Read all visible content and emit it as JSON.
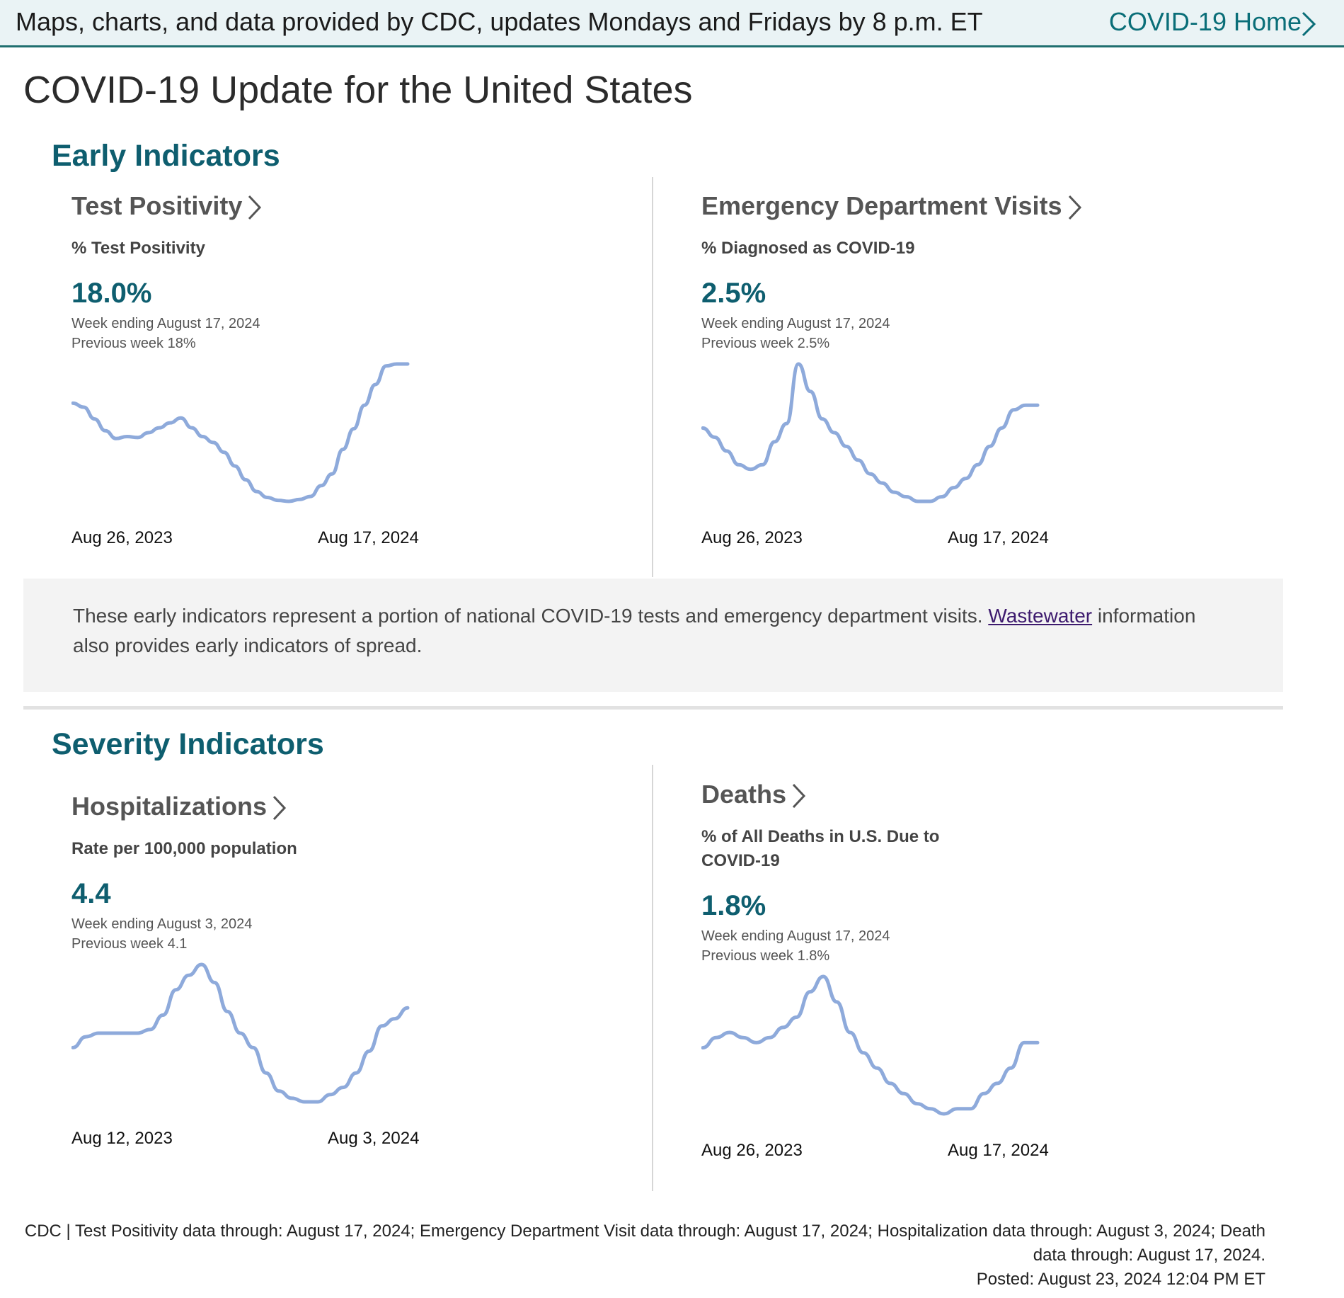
{
  "topbar": {
    "note": "Maps, charts, and data provided by CDC, updates Mondays and Fridays by 8 p.m. ET",
    "home_link": "COVID-19 Home"
  },
  "page_title": "COVID-19 Update for the United States",
  "early": {
    "title": "Early Indicators",
    "callout_text": "These early indicators represent a portion of national COVID-19 tests and emergency department visits.",
    "callout_link": "Wastewater",
    "callout_text2": "information also provides early indicators of spread."
  },
  "severity": {
    "title": "Severity Indicators"
  },
  "panels": {
    "test_positivity": {
      "title": "Test Positivity",
      "subtitle": "% Test Positivity",
      "value": "18.0%",
      "week": "Week ending August 17, 2024",
      "previous": "Previous week 18%",
      "x_start": "Aug 26, 2023",
      "x_end": "Aug 17, 2024"
    },
    "ed_visits": {
      "title": "Emergency Department Visits",
      "subtitle": "% Diagnosed as COVID-19",
      "value": "2.5%",
      "week": "Week ending August 17, 2024",
      "previous": "Previous week 2.5%",
      "x_start": "Aug 26, 2023",
      "x_end": "Aug 17, 2024"
    },
    "hospitalizations": {
      "title": "Hospitalizations",
      "subtitle": "Rate per 100,000 population",
      "value": "4.4",
      "week": "Week ending August 3, 2024",
      "previous": "Previous week 4.1",
      "x_start": "Aug 12, 2023",
      "x_end": "Aug 3, 2024"
    },
    "deaths": {
      "title": "Deaths",
      "subtitle": "% of All Deaths in U.S. Due to COVID-19",
      "value": "1.8%",
      "week": "Week ending August 17, 2024",
      "previous": "Previous week 1.8%",
      "x_start": "Aug 26, 2023",
      "x_end": "Aug 17, 2024"
    }
  },
  "footer": {
    "line1": "CDC | Test Positivity data through: August 17, 2024; Emergency Department Visit data through: August 17, 2024; Hospitalization data through: August 3, 2024; Death data through: August 17, 2024.",
    "posted": "Posted: August 23, 2024 12:04 PM ET"
  },
  "colors": {
    "accent": "#0e5e6f",
    "line": "#8eaadb",
    "link": "#0a6e78"
  },
  "chart_data": [
    {
      "type": "line",
      "title": "Test Positivity",
      "x_start": "Aug 26, 2023",
      "x_end": "Aug 17, 2024",
      "values": [
        14.0,
        13.6,
        12.4,
        11.2,
        10.4,
        10.6,
        10.5,
        11.0,
        11.5,
        12.0,
        12.5,
        11.5,
        10.6,
        10.0,
        9.0,
        7.6,
        6.2,
        5.0,
        4.4,
        4.1,
        4.0,
        4.2,
        4.5,
        5.6,
        6.8,
        9.3,
        11.4,
        13.8,
        15.9,
        17.8,
        18.0,
        18.0
      ]
    },
    {
      "type": "line",
      "title": "Emergency Department Visits",
      "x_start": "Aug 26, 2023",
      "x_end": "Aug 17, 2024",
      "values": [
        2.0,
        1.8,
        1.5,
        1.2,
        1.1,
        1.2,
        1.7,
        2.1,
        3.4,
        2.8,
        2.2,
        1.9,
        1.6,
        1.3,
        1.0,
        0.8,
        0.6,
        0.5,
        0.4,
        0.4,
        0.5,
        0.7,
        0.9,
        1.2,
        1.6,
        2.0,
        2.4,
        2.5,
        2.5
      ]
    },
    {
      "type": "line",
      "title": "Hospitalizations",
      "x_start": "Aug 12, 2023",
      "x_end": "Aug 3, 2024",
      "values": [
        3.3,
        3.6,
        3.7,
        3.7,
        3.7,
        3.7,
        3.8,
        4.2,
        4.9,
        5.3,
        5.6,
        5.1,
        4.3,
        3.7,
        3.3,
        2.6,
        2.1,
        1.9,
        1.8,
        1.8,
        2.0,
        2.2,
        2.6,
        3.2,
        3.9,
        4.1,
        4.4
      ]
    },
    {
      "type": "line",
      "title": "Deaths",
      "x_start": "Aug 26, 2023",
      "x_end": "Aug 17, 2024",
      "values": [
        1.7,
        1.9,
        2.0,
        1.9,
        1.8,
        1.9,
        2.1,
        2.3,
        2.8,
        3.1,
        2.6,
        2.0,
        1.6,
        1.3,
        1.0,
        0.8,
        0.6,
        0.5,
        0.4,
        0.5,
        0.5,
        0.8,
        1.0,
        1.3,
        1.8,
        1.8
      ]
    }
  ]
}
